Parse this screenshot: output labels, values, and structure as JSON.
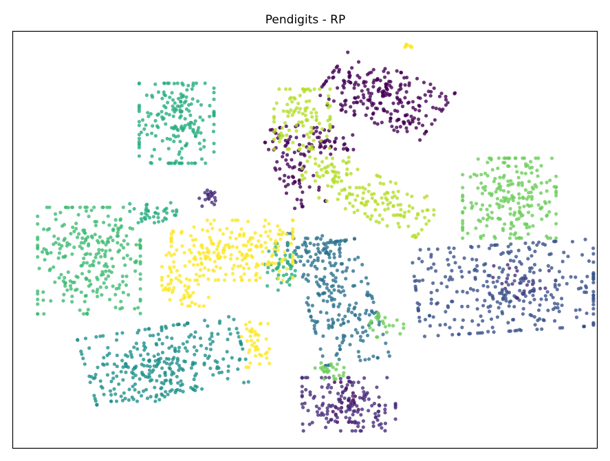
{
  "chart_data": {
    "type": "scatter",
    "title": "Pendigits - RP",
    "xlabel": "",
    "ylabel": "",
    "axes_ticks": "none",
    "grid": false,
    "legend": "none",
    "xlim": [
      0,
      100
    ],
    "ylim": [
      0,
      100
    ],
    "colormap": "viridis",
    "point_opacity": 0.8,
    "series": [
      {
        "color": "#440154",
        "clusters": [
          {
            "center": [
              63.5,
              84.5
            ],
            "spread": [
              6.5,
              4.0
            ],
            "n": 230,
            "angle": -28
          },
          {
            "center": [
              47.8,
              67.5
            ],
            "spread": [
              1.8,
              6.0
            ],
            "n": 70,
            "angle": 18
          },
          {
            "center": [
              53.0,
              73.5
            ],
            "spread": [
              3.5,
              2.5
            ],
            "n": 55,
            "angle": -20
          },
          {
            "center": [
              57.0,
              11.0
            ],
            "spread": [
              1.8,
              3.0
            ],
            "n": 25,
            "angle": 0
          }
        ]
      },
      {
        "color": "#472d7b",
        "clusters": [
          {
            "center": [
              57.5,
              10.5
            ],
            "spread": [
              5.0,
              4.0
            ],
            "n": 150,
            "angle": 0
          },
          {
            "center": [
              33.5,
              60.0
            ],
            "spread": [
              1.0,
              1.2
            ],
            "n": 20,
            "angle": 0
          },
          {
            "center": [
              87.0,
              40.0
            ],
            "spread": [
              3.0,
              2.5
            ],
            "n": 30,
            "angle": 0
          }
        ]
      },
      {
        "color": "#3b528b",
        "clusters": [
          {
            "center": [
              85.0,
              38.5
            ],
            "spread": [
              10.0,
              6.5
            ],
            "n": 320,
            "angle": 5
          }
        ]
      },
      {
        "color": "#2c728e",
        "clusters": [
          {
            "center": [
              56.0,
              35.0
            ],
            "spread": [
              3.5,
              9.0
            ],
            "n": 210,
            "angle": 12
          },
          {
            "center": [
              51.5,
              48.0
            ],
            "spread": [
              2.8,
              2.2
            ],
            "n": 55,
            "angle": 0
          }
        ]
      },
      {
        "color": "#21918c",
        "clusters": [
          {
            "center": [
              26.0,
              21.0
            ],
            "spread": [
              8.5,
              5.0
            ],
            "n": 260,
            "angle": 12
          },
          {
            "center": [
              24.0,
              16.0
            ],
            "spread": [
              4.5,
              3.0
            ],
            "n": 50,
            "angle": 0
          }
        ]
      },
      {
        "color": "#28ae80",
        "clusters": [
          {
            "center": [
              28.0,
              78.0
            ],
            "spread": [
              4.0,
              6.0
            ],
            "n": 190,
            "angle": 0
          },
          {
            "center": [
              24.0,
              56.5
            ],
            "spread": [
              2.5,
              1.5
            ],
            "n": 40,
            "angle": 0
          },
          {
            "center": [
              46.0,
              43.5
            ],
            "spread": [
              1.8,
              3.5
            ],
            "n": 45,
            "angle": 0
          }
        ]
      },
      {
        "color": "#3fbc73",
        "clusters": [
          {
            "center": [
              13.0,
              45.0
            ],
            "spread": [
              5.5,
              8.0
            ],
            "n": 270,
            "angle": 0
          }
        ]
      },
      {
        "color": "#6ccd5a",
        "clusters": [
          {
            "center": [
              85.0,
              60.0
            ],
            "spread": [
              5.0,
              6.0
            ],
            "n": 220,
            "angle": 0
          },
          {
            "center": [
              54.5,
              18.5
            ],
            "spread": [
              1.8,
              1.2
            ],
            "n": 25,
            "angle": 0
          },
          {
            "center": [
              64.0,
              29.5
            ],
            "spread": [
              1.8,
              1.8
            ],
            "n": 25,
            "angle": 0
          }
        ]
      },
      {
        "color": "#b5de2b",
        "clusters": [
          {
            "center": [
              49.5,
              79.0
            ],
            "spread": [
              3.0,
              4.5
            ],
            "n": 110,
            "angle": 0
          },
          {
            "center": [
              63.0,
              59.5
            ],
            "spread": [
              6.0,
              3.0
            ],
            "n": 130,
            "angle": -30
          },
          {
            "center": [
              53.5,
              67.0
            ],
            "spread": [
              2.5,
              1.8
            ],
            "n": 40,
            "angle": 0
          }
        ]
      },
      {
        "color": "#fde725",
        "clusters": [
          {
            "center": [
              37.5,
              47.5
            ],
            "spread": [
              6.5,
              4.5
            ],
            "n": 220,
            "angle": 0
          },
          {
            "center": [
              29.5,
              40.5
            ],
            "spread": [
              2.5,
              4.0
            ],
            "n": 60,
            "angle": 0
          },
          {
            "center": [
              41.5,
              25.0
            ],
            "spread": [
              1.5,
              3.5
            ],
            "n": 40,
            "angle": 0
          },
          {
            "center": [
              67.5,
              96.5
            ],
            "spread": [
              0.5,
              0.3
            ],
            "n": 8,
            "angle": 0
          }
        ]
      }
    ]
  }
}
